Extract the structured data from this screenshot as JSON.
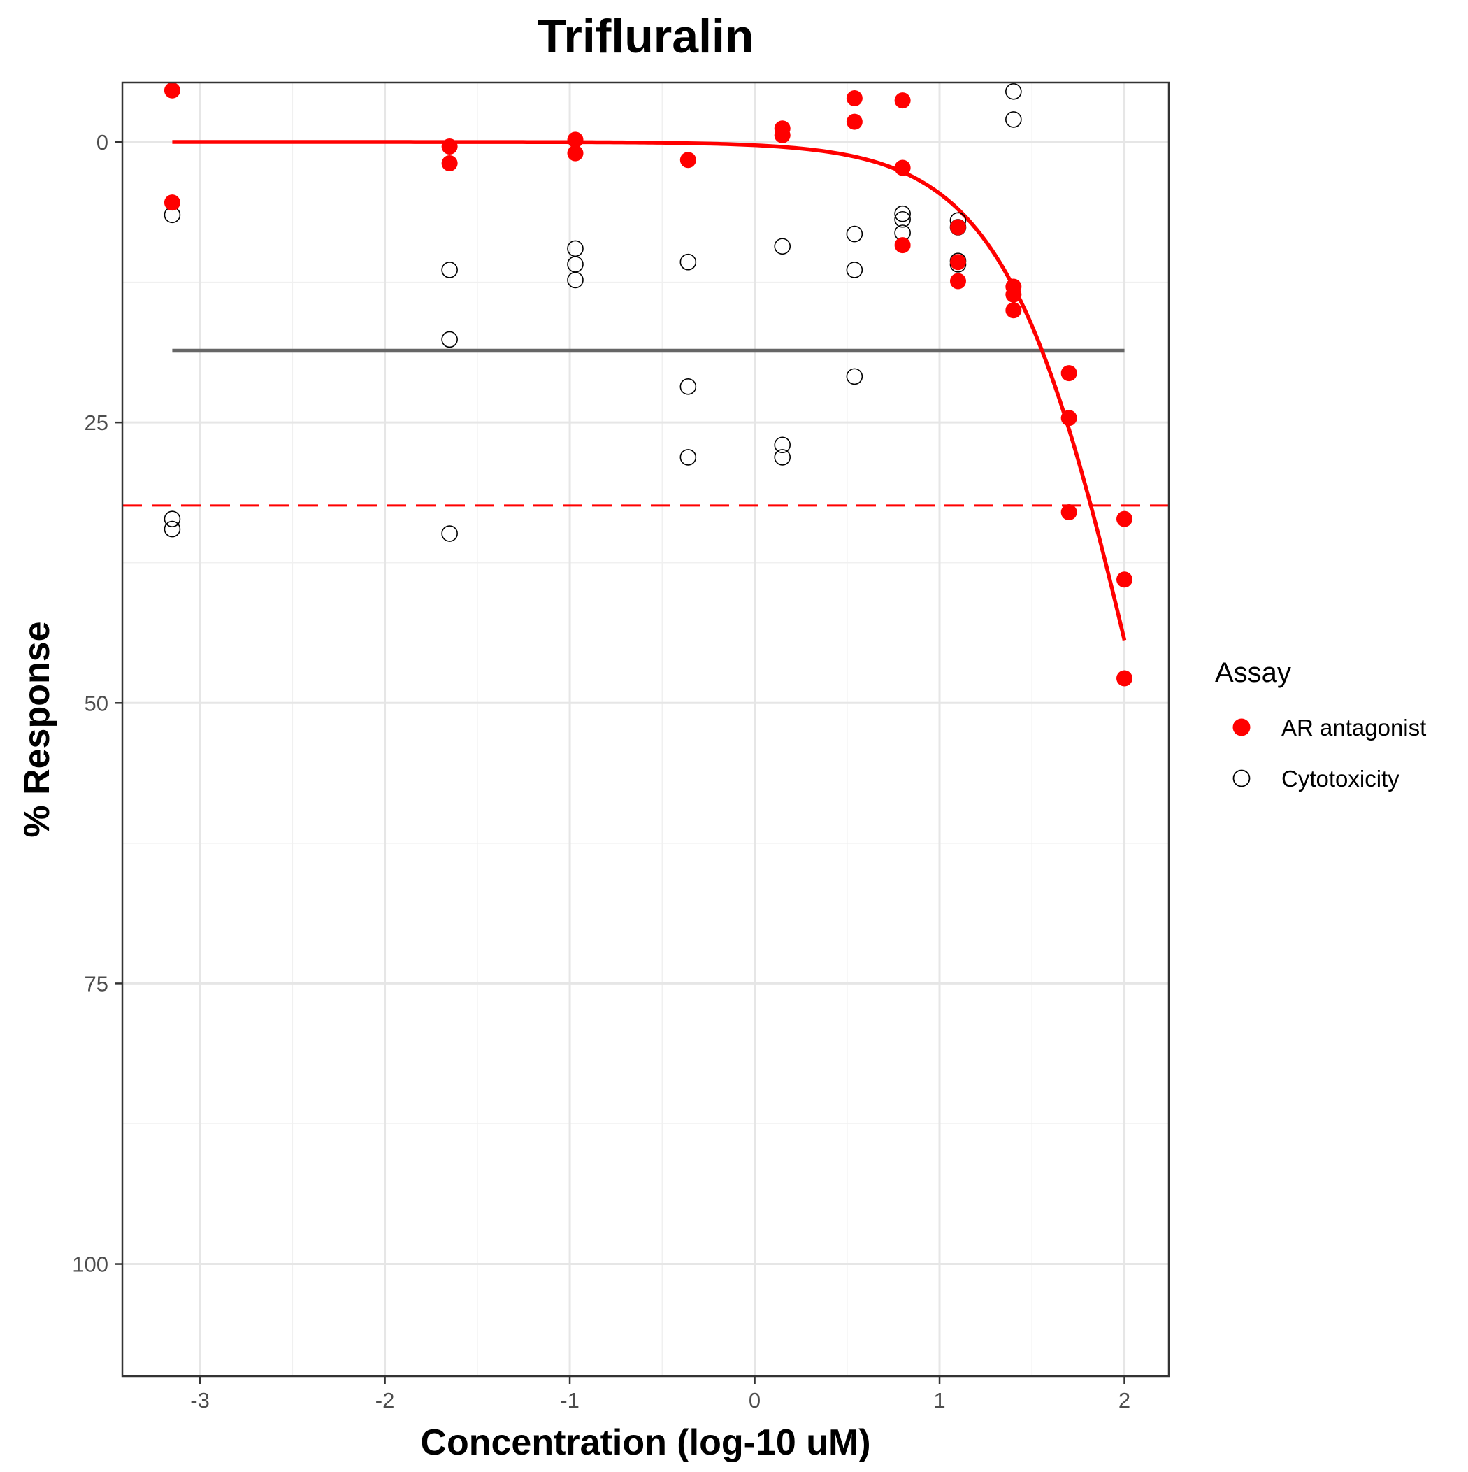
{
  "chart_data": {
    "type": "scatter",
    "title": "Trifluralin",
    "xlabel": "Concentration (log-10 uM)",
    "ylabel": "% Response",
    "xlim": [
      -3.42,
      2.24
    ],
    "ylim": [
      110,
      -5.3
    ],
    "y_reversed": true,
    "x_ticks": [
      -3,
      -2,
      -1,
      0,
      1,
      2
    ],
    "x_tick_labels": [
      "-3",
      "-2",
      "-1",
      "0",
      "1",
      "2"
    ],
    "y_ticks": [
      0,
      25,
      50,
      75,
      100
    ],
    "y_tick_labels": [
      "0",
      "25",
      "50",
      "75",
      "100"
    ],
    "grid": true,
    "legend": {
      "title": "Assay",
      "position": "right",
      "entries": [
        {
          "label": "AR antagonist",
          "marker": "filled-circle",
          "color": "#ff0000"
        },
        {
          "label": "Cytotoxicity",
          "marker": "open-circle",
          "color": "#000000"
        }
      ]
    },
    "series": [
      {
        "name": "AR antagonist",
        "marker": "filled-circle",
        "color": "#ff0000",
        "points": [
          [
            -3.15,
            -4.6
          ],
          [
            -3.15,
            5.4
          ],
          [
            -1.65,
            0.4
          ],
          [
            -1.65,
            1.9
          ],
          [
            -0.97,
            -0.2
          ],
          [
            -0.97,
            1.0
          ],
          [
            -0.36,
            1.6
          ],
          [
            0.15,
            -1.2
          ],
          [
            0.15,
            -0.6
          ],
          [
            0.54,
            -3.9
          ],
          [
            0.54,
            -1.8
          ],
          [
            0.8,
            -3.7
          ],
          [
            0.8,
            2.3
          ],
          [
            0.8,
            9.2
          ],
          [
            1.1,
            7.6
          ],
          [
            1.1,
            10.7
          ],
          [
            1.1,
            12.4
          ],
          [
            1.4,
            12.9
          ],
          [
            1.4,
            13.6
          ],
          [
            1.4,
            15.0
          ],
          [
            1.7,
            20.6
          ],
          [
            1.7,
            24.6
          ],
          [
            1.7,
            33.0
          ],
          [
            2.0,
            33.6
          ],
          [
            2.0,
            39.0
          ],
          [
            2.0,
            47.8
          ]
        ]
      },
      {
        "name": "Cytotoxicity",
        "marker": "open-circle",
        "color": "#000000",
        "points": [
          [
            -3.15,
            6.5
          ],
          [
            -3.15,
            33.6
          ],
          [
            -3.15,
            34.5
          ],
          [
            -1.65,
            11.4
          ],
          [
            -1.65,
            17.6
          ],
          [
            -1.65,
            34.9
          ],
          [
            -0.97,
            9.5
          ],
          [
            -0.97,
            10.9
          ],
          [
            -0.97,
            12.3
          ],
          [
            -0.36,
            10.7
          ],
          [
            -0.36,
            21.8
          ],
          [
            -0.36,
            28.1
          ],
          [
            0.15,
            9.3
          ],
          [
            0.15,
            27.0
          ],
          [
            0.15,
            28.1
          ],
          [
            0.54,
            8.2
          ],
          [
            0.54,
            11.4
          ],
          [
            0.54,
            20.9
          ],
          [
            0.8,
            6.4
          ],
          [
            0.8,
            6.9
          ],
          [
            0.8,
            8.1
          ],
          [
            1.1,
            7.0
          ],
          [
            1.1,
            7.6
          ],
          [
            1.1,
            10.6
          ],
          [
            1.1,
            10.9
          ],
          [
            1.4,
            -4.5
          ],
          [
            1.4,
            -2.0
          ]
        ]
      }
    ],
    "fit_curve": {
      "series": "AR antagonist",
      "color": "#ff0000",
      "model": "hill",
      "top": 0,
      "bottom": 100,
      "ac50_log": 2.08,
      "hill_slope": 1.22,
      "x_range": [
        -3.15,
        2.0
      ]
    },
    "reference_lines": [
      {
        "kind": "cytotoxicity-median",
        "y": 18.6,
        "x_range": [
          -3.15,
          2.0
        ],
        "color": "#666666",
        "style": "solid"
      },
      {
        "kind": "cutoff",
        "y": 32.4,
        "color": "#ff0000",
        "style": "dashed"
      }
    ]
  }
}
